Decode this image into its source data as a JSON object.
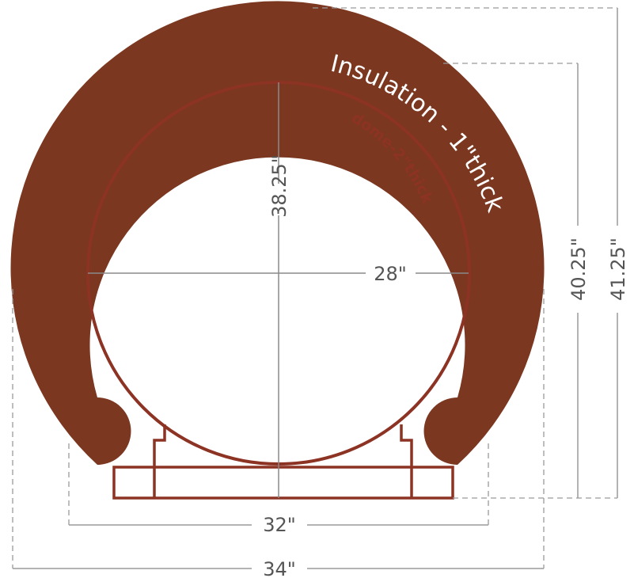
{
  "colors": {
    "insulation": "#7b3720",
    "dome": "#8c3324",
    "dimension_line": "#9a9a9a",
    "dimension_text": "#555555",
    "background": "#ffffff"
  },
  "labels": {
    "insulation": "Insulation - 1\"thick",
    "dome": "dome-2\"thick",
    "dim_height_inner": "38.25\"",
    "dim_width_inner": "28\"",
    "dim_height_mid": "40.25\"",
    "dim_height_outer": "41.25\"",
    "dim_width_mid": "32\"",
    "dim_width_outer": "34\""
  }
}
